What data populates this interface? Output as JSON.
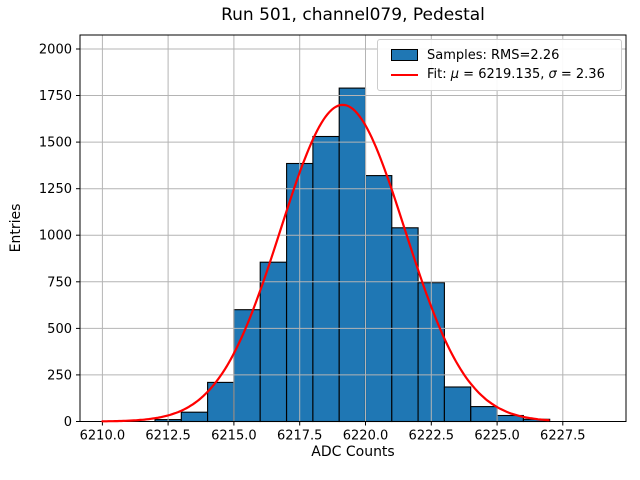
{
  "figure": {
    "title": "Run 501, channel079, Pedestal"
  },
  "axes": {
    "xlabel": "ADC Counts",
    "ylabel": "Entries"
  },
  "legend": {
    "samples_label": "Samples: RMS=2.26",
    "fit_prefix": "Fit: ",
    "mu_symbol": "μ",
    "mu_value": " = 6219.135, ",
    "sigma_symbol": "σ",
    "sigma_value": " = 2.36",
    "swatch_color": "#1f77b4",
    "fit_line_color": "#ff0000"
  },
  "chart_data": {
    "type": "bar",
    "subtype": "histogram",
    "title": "Run 501, channel079, Pedestal",
    "xlabel": "ADC Counts",
    "ylabel": "Entries",
    "bin_edges": [
      6210,
      6211,
      6212,
      6213,
      6214,
      6215,
      6216,
      6217,
      6218,
      6219,
      6220,
      6221,
      6222,
      6223,
      6224,
      6225,
      6226,
      6227,
      6228,
      6229
    ],
    "counts": [
      0,
      0,
      10,
      50,
      210,
      600,
      855,
      1385,
      1530,
      1790,
      1320,
      1040,
      745,
      185,
      80,
      32,
      12,
      0,
      0
    ],
    "bar_color": "#1f77b4",
    "bar_edge_color": "#000000",
    "fit": {
      "mu": 6219.135,
      "sigma": 2.36,
      "amplitude": 1700,
      "color": "#ff0000",
      "x_start": 6210,
      "x_end": 6227
    },
    "xlim": [
      6209.15,
      6229.9
    ],
    "ylim": [
      0,
      2075
    ],
    "xticks": [
      6210.0,
      6212.5,
      6215.0,
      6217.5,
      6220.0,
      6222.5,
      6225.0,
      6227.5
    ],
    "xtick_labels": [
      "6210.0",
      "6212.5",
      "6215.0",
      "6217.5",
      "6220.0",
      "6222.5",
      "6225.0",
      "6227.5"
    ],
    "yticks": [
      0,
      250,
      500,
      750,
      1000,
      1250,
      1500,
      1750,
      2000
    ],
    "ytick_labels": [
      "0",
      "250",
      "500",
      "750",
      "1000",
      "1250",
      "1500",
      "1750",
      "2000"
    ],
    "grid": true,
    "grid_color": "#b4b4b4",
    "grid_over_bars": true,
    "legend_position": "upper right",
    "legend_entries": [
      "Samples: RMS=2.26",
      "Fit: μ = 6219.135, σ = 2.36"
    ]
  }
}
